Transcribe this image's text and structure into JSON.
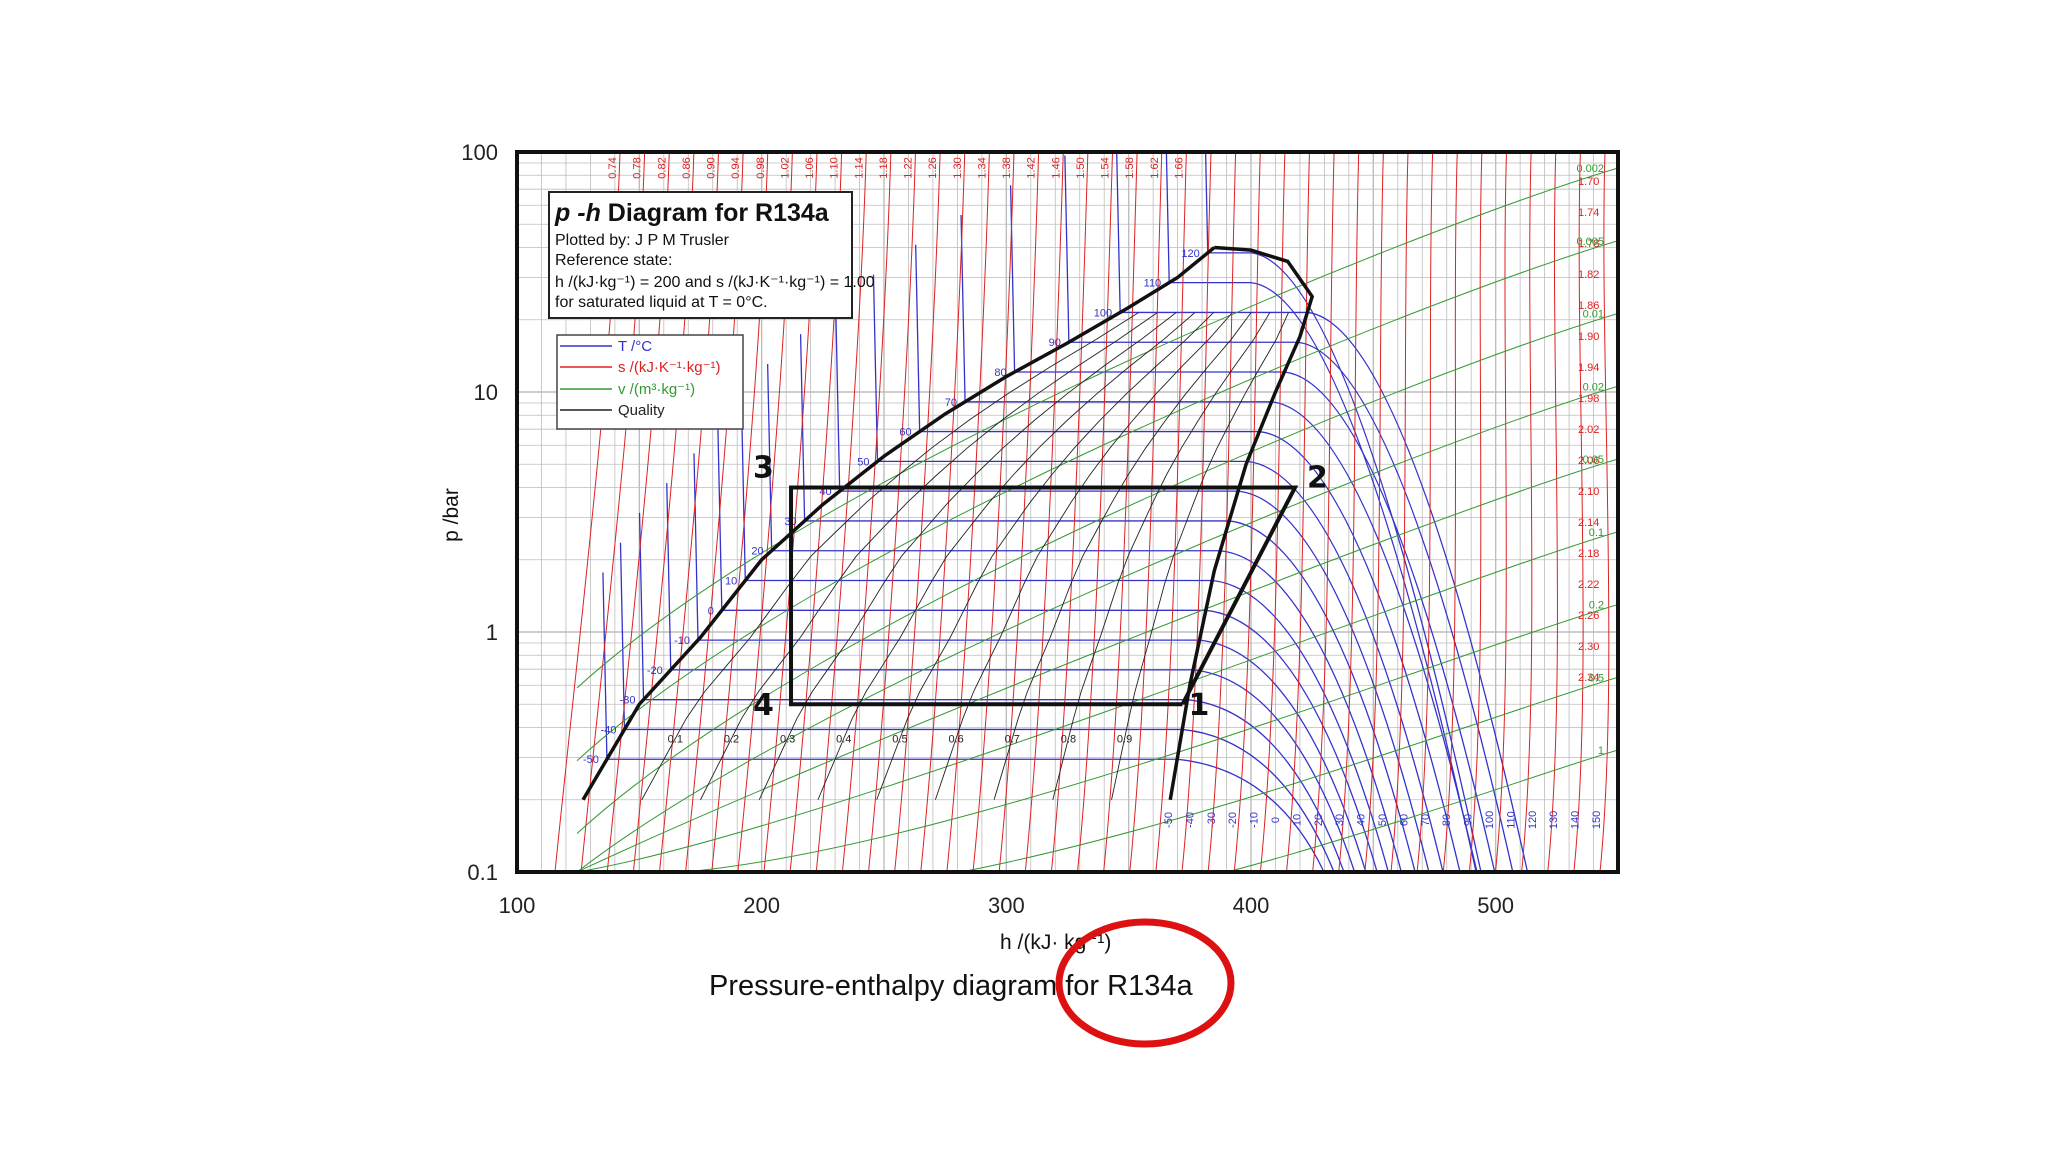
{
  "chart_data": {
    "type": "line",
    "title": "p-h  Diagram for R134a",
    "title_parts": [
      "p",
      " -",
      "h",
      "  Diagram for R134a"
    ],
    "info_lines": [
      "Plotted by: J P M Trusler",
      "Reference state:",
      "h /(kJ·kg⁻¹) = 200 and s /(kJ·K⁻¹·kg⁻¹) = 1.00",
      "for saturated liquid at T = 0°C."
    ],
    "xlabel": "h /(kJ· kg⁻¹)",
    "ylabel": "p /bar",
    "xlim": [
      100,
      550
    ],
    "ylim": [
      0.1,
      100
    ],
    "yscale": "log",
    "x_ticks": [
      "100",
      "200",
      "300",
      "400",
      "500"
    ],
    "y_ticks": [
      "0.1",
      "1",
      "10",
      "100"
    ],
    "grid": true,
    "legend_position": "upper-left",
    "legend": [
      {
        "label": "T /°C",
        "color": "#3333cc"
      },
      {
        "label": "s /(kJ·K⁻¹·kg⁻¹)",
        "color": "#dd2222"
      },
      {
        "label": "v /(m³·kg⁻¹)",
        "color": "#339933"
      },
      {
        "label": "Quality",
        "color": "#222222"
      }
    ],
    "saturation_dome": {
      "liquid_line": {
        "h": [
          127,
          150,
          175,
          200,
          225,
          250,
          275,
          300,
          325,
          350,
          370,
          385
        ],
        "p": [
          0.2,
          0.5,
          0.95,
          2.0,
          3.4,
          5.4,
          8.1,
          11.6,
          16.0,
          22.5,
          30.0,
          40.0
        ]
      },
      "vapor_line": {
        "h": [
          385,
          400,
          415,
          425,
          420,
          410,
          398,
          385,
          375,
          367
        ],
        "p": [
          40.0,
          39.0,
          35.0,
          25.0,
          17.0,
          10.0,
          5.0,
          1.8,
          0.6,
          0.2
        ]
      }
    },
    "isotherms_C": [
      "-50",
      "-40",
      "-30",
      "-20",
      "-10",
      "0",
      "10",
      "20",
      "30",
      "40",
      "50",
      "60",
      "70",
      "80",
      "90",
      "100",
      "110",
      "120"
    ],
    "isotherm_bottom_labels": [
      "-50",
      "-40",
      "-30",
      "-20",
      "-10",
      "0",
      "10",
      "20",
      "30",
      "40",
      "50",
      "60",
      "70",
      "80",
      "90",
      "100",
      "110",
      "120",
      "130",
      "140",
      "150"
    ],
    "isentropes": [
      "0.74",
      "0.78",
      "0.82",
      "0.86",
      "0.90",
      "0.94",
      "0.98",
      "1.02",
      "1.06",
      "1.10",
      "1.14",
      "1.18",
      "1.22",
      "1.26",
      "1.30",
      "1.34",
      "1.38",
      "1.42",
      "1.46",
      "1.50",
      "1.54",
      "1.58",
      "1.62",
      "1.66",
      "1.70",
      "1.74",
      "1.78",
      "1.82",
      "1.86",
      "1.90",
      "1.94",
      "1.98",
      "2.02",
      "2.06",
      "2.10",
      "2.14",
      "2.18",
      "2.22",
      "2.26",
      "2.30",
      "2.34"
    ],
    "isochores": [
      "0.002",
      "0.005",
      "0.01",
      "0.02",
      "0.05",
      "0.1",
      "0.2",
      "0.5",
      "1"
    ],
    "quality_lines": [
      "0.1",
      "0.2",
      "0.3",
      "0.4",
      "0.5",
      "0.6",
      "0.7",
      "0.8",
      "0.9"
    ],
    "cycle": {
      "points": [
        {
          "label": "1",
          "h": 372,
          "p": 0.5
        },
        {
          "label": "2",
          "h": 418,
          "p": 4.0
        },
        {
          "label": "3",
          "h": 212,
          "p": 4.0
        },
        {
          "label": "4",
          "h": 212,
          "p": 0.5
        }
      ]
    }
  },
  "caption": "Pressure-enthalpy diagram for R134a",
  "colors": {
    "isotherm": "#3333cc",
    "isentrope": "#dd2222",
    "isochore": "#339933",
    "quality": "#222222",
    "highlight_circle": "#dd1111"
  }
}
